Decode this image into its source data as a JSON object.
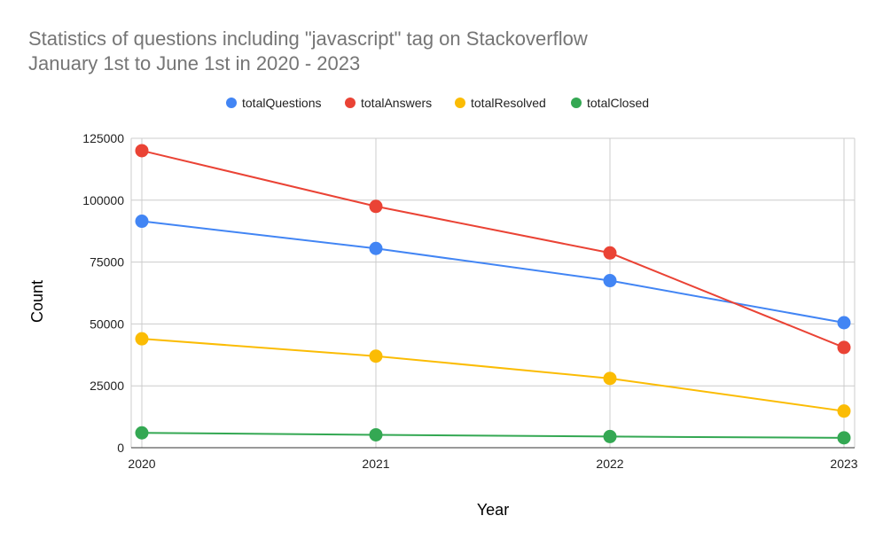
{
  "chart_data": {
    "type": "line",
    "title_lines": [
      "Statistics of questions including \"javascript\" tag on Stackoverflow",
      "January 1st to June 1st in 2020 - 2023"
    ],
    "xlabel": "Year",
    "ylabel": "Count",
    "x": [
      "2020",
      "2021",
      "2022",
      "2023"
    ],
    "y_ticks": [
      "0",
      "25000",
      "50000",
      "75000",
      "100000",
      "125000"
    ],
    "ylim": [
      0,
      125000
    ],
    "grid": true,
    "legend_position": "top",
    "series": [
      {
        "name": "totalQuestions",
        "color": "#4285F4",
        "values": [
          91500,
          80500,
          67500,
          50500
        ]
      },
      {
        "name": "totalAnswers",
        "color": "#EA4335",
        "values": [
          120000,
          97500,
          78700,
          40500
        ]
      },
      {
        "name": "totalResolved",
        "color": "#FBBC04",
        "values": [
          44000,
          37000,
          28000,
          14800
        ]
      },
      {
        "name": "totalClosed",
        "color": "#34A853",
        "values": [
          6000,
          5200,
          4500,
          4000
        ]
      }
    ]
  }
}
